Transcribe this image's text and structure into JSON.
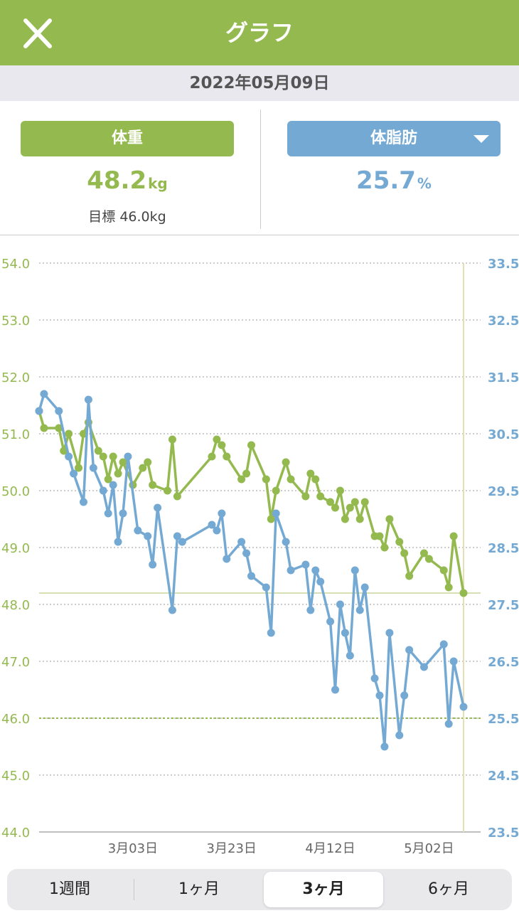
{
  "header": {
    "title": "グラフ",
    "close_icon": "close-icon"
  },
  "date": "2022年05月09日",
  "weight": {
    "button_label": "体重",
    "value": "48.2",
    "unit": "kg",
    "goal": "目標 46.0kg",
    "color": "#93b94f"
  },
  "body_fat": {
    "button_label": "体脂肪",
    "value": "25.7",
    "unit": "%",
    "dropdown_icon": "chevron-down-icon",
    "color": "#74a9d4"
  },
  "chart_data": {
    "type": "line",
    "left_axis": {
      "ylim": [
        44.0,
        54.0
      ],
      "ticks": [
        "54.0",
        "53.0",
        "52.0",
        "51.0",
        "50.0",
        "49.0",
        "48.0",
        "47.0",
        "46.0",
        "45.0",
        "44.0"
      ]
    },
    "right_axis": {
      "ylim": [
        23.5,
        33.5
      ],
      "ticks": [
        "33.5",
        "32.5",
        "31.5",
        "30.5",
        "29.5",
        "28.5",
        "27.5",
        "26.5",
        "25.5",
        "24.5",
        "23.5"
      ]
    },
    "x_range_days": [
      0,
      86
    ],
    "x_ticks": [
      {
        "label": "3月03日",
        "day": 19
      },
      {
        "label": "3月23日",
        "day": 39
      },
      {
        "label": "4月12日",
        "day": 59
      },
      {
        "label": "5月02日",
        "day": 79
      }
    ],
    "current_weight": 48.2,
    "goal_weight": 46.0,
    "series": [
      {
        "axis": "left",
        "color": "#93b94f",
        "points": [
          [
            0,
            51.4
          ],
          [
            1,
            51.1
          ],
          [
            4,
            51.1
          ],
          [
            5,
            50.7
          ],
          [
            6,
            51.0
          ],
          [
            8,
            50.4
          ],
          [
            9,
            51.0
          ],
          [
            10,
            51.2
          ],
          [
            12,
            50.7
          ],
          [
            13,
            50.6
          ],
          [
            14,
            50.2
          ],
          [
            15,
            50.6
          ],
          [
            16,
            50.3
          ],
          [
            17,
            50.5
          ],
          [
            19,
            50.1
          ],
          [
            21,
            50.4
          ],
          [
            22,
            50.5
          ],
          [
            23,
            50.1
          ],
          [
            26,
            50.0
          ],
          [
            27,
            50.9
          ],
          [
            28,
            49.9
          ],
          [
            35,
            50.6
          ],
          [
            36,
            50.9
          ],
          [
            37,
            50.8
          ],
          [
            38,
            50.6
          ],
          [
            41,
            50.2
          ],
          [
            42,
            50.3
          ],
          [
            43,
            50.8
          ],
          [
            46,
            50.2
          ],
          [
            47,
            49.5
          ],
          [
            48,
            50.0
          ],
          [
            50,
            50.5
          ],
          [
            51,
            50.2
          ],
          [
            54,
            49.9
          ],
          [
            55,
            50.3
          ],
          [
            56,
            50.2
          ],
          [
            57,
            49.9
          ],
          [
            59,
            49.8
          ],
          [
            60,
            49.7
          ],
          [
            61,
            50.0
          ],
          [
            62,
            49.5
          ],
          [
            63,
            49.7
          ],
          [
            64,
            49.8
          ],
          [
            65,
            49.5
          ],
          [
            66,
            49.8
          ],
          [
            68,
            49.2
          ],
          [
            69,
            49.2
          ],
          [
            70,
            49.0
          ],
          [
            71,
            49.5
          ],
          [
            73,
            49.1
          ],
          [
            74,
            48.9
          ],
          [
            75,
            48.5
          ],
          [
            78,
            48.9
          ],
          [
            79,
            48.8
          ],
          [
            82,
            48.6
          ],
          [
            83,
            48.3
          ],
          [
            84,
            49.2
          ],
          [
            86,
            48.2
          ]
        ]
      },
      {
        "axis": "right",
        "color": "#74a9d4",
        "points": [
          [
            0,
            30.9
          ],
          [
            1,
            31.2
          ],
          [
            4,
            30.9
          ],
          [
            6,
            30.1
          ],
          [
            7,
            29.8
          ],
          [
            9,
            29.3
          ],
          [
            10,
            31.1
          ],
          [
            11,
            29.9
          ],
          [
            13,
            29.5
          ],
          [
            14,
            29.1
          ],
          [
            15,
            29.6
          ],
          [
            16,
            28.6
          ],
          [
            17,
            29.1
          ],
          [
            18,
            30.1
          ],
          [
            20,
            28.8
          ],
          [
            22,
            28.7
          ],
          [
            23,
            28.2
          ],
          [
            24,
            29.2
          ],
          [
            27,
            27.4
          ],
          [
            28,
            28.7
          ],
          [
            29,
            28.6
          ],
          [
            35,
            28.9
          ],
          [
            36,
            28.8
          ],
          [
            37,
            29.1
          ],
          [
            38,
            28.3
          ],
          [
            41,
            28.6
          ],
          [
            42,
            28.4
          ],
          [
            43,
            28.0
          ],
          [
            46,
            27.8
          ],
          [
            47,
            27.0
          ],
          [
            48,
            29.1
          ],
          [
            50,
            28.6
          ],
          [
            51,
            28.1
          ],
          [
            54,
            28.2
          ],
          [
            55,
            27.4
          ],
          [
            56,
            28.1
          ],
          [
            57,
            27.9
          ],
          [
            59,
            27.2
          ],
          [
            60,
            26.0
          ],
          [
            61,
            27.5
          ],
          [
            62,
            27.0
          ],
          [
            63,
            26.6
          ],
          [
            64,
            28.1
          ],
          [
            65,
            27.4
          ],
          [
            66,
            27.8
          ],
          [
            68,
            26.2
          ],
          [
            69,
            25.9
          ],
          [
            70,
            25.0
          ],
          [
            71,
            27.0
          ],
          [
            73,
            25.2
          ],
          [
            74,
            25.9
          ],
          [
            75,
            26.7
          ],
          [
            78,
            26.4
          ],
          [
            82,
            26.8
          ],
          [
            83,
            25.4
          ],
          [
            84,
            26.5
          ],
          [
            86,
            25.7
          ]
        ]
      }
    ]
  },
  "tabs": [
    {
      "label": "1週間",
      "active": false
    },
    {
      "label": "1ヶ月",
      "active": false
    },
    {
      "label": "3ヶ月",
      "active": true
    },
    {
      "label": "6ヶ月",
      "active": false
    }
  ]
}
